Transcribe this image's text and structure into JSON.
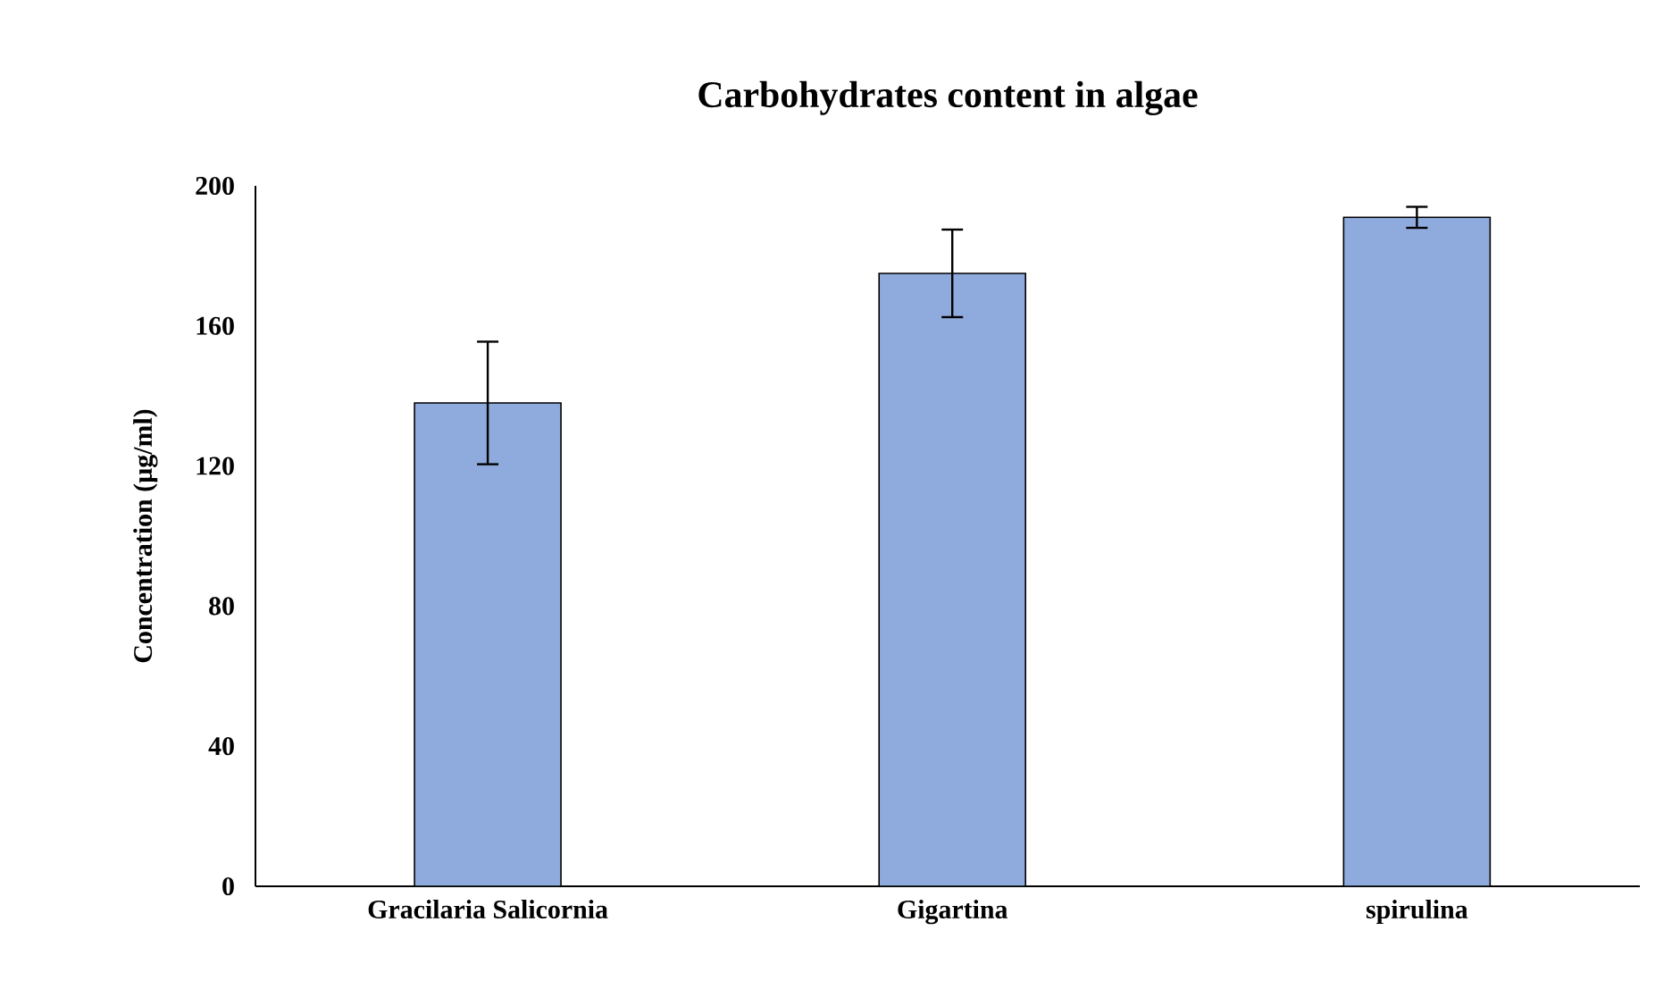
{
  "chart_data": {
    "type": "bar",
    "title": "Carbohydrates content in algae",
    "ylabel": "Concentration (µg/ml)",
    "categories": [
      "Gracilaria Salicornia",
      "Gigartina",
      "spirulina"
    ],
    "values": [
      138,
      175,
      191
    ],
    "errors": [
      17.5,
      12.5,
      3
    ],
    "color": "#8faadc",
    "ylim": [
      0,
      200
    ],
    "yticks": [
      0,
      40,
      80,
      120,
      160,
      200
    ],
    "grid": false
  }
}
